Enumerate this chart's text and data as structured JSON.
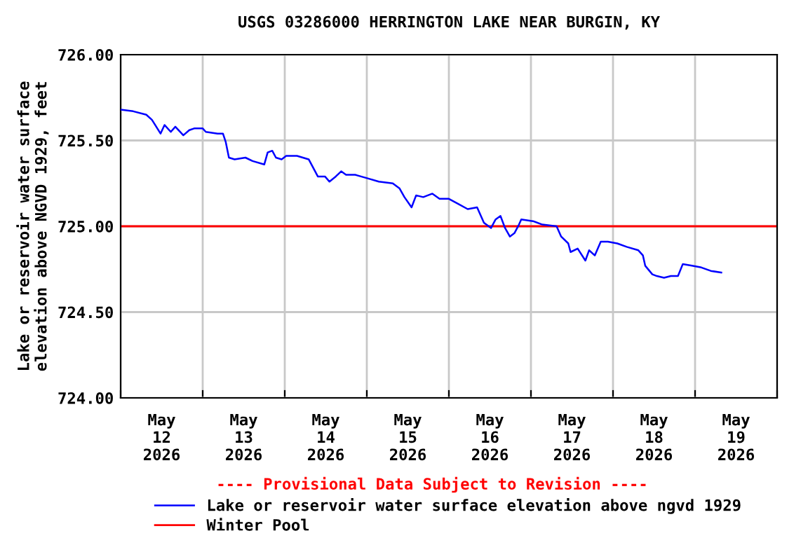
{
  "chart_data": {
    "type": "line",
    "title": "USGS 03286000 HERRINGTON LAKE NEAR BURGIN, KY",
    "ylabel": "Lake or reservoir water surface\nelevation above NGVD 1929, feet",
    "annotations": [
      "---- Provisional Data Subject to Revision ----"
    ],
    "xlim": [
      "2026-05-12T00:00",
      "2026-05-20T00:00"
    ],
    "xticks": [
      {
        "value": "2026-05-12T00:00",
        "label": null
      },
      {
        "value": "2026-05-13T00:00",
        "label": null
      },
      {
        "value": "2026-05-14T00:00",
        "label": null
      },
      {
        "value": "2026-05-15T00:00",
        "label": null
      },
      {
        "value": "2026-05-16T00:00",
        "label": null
      },
      {
        "value": "2026-05-17T00:00",
        "label": null
      },
      {
        "value": "2026-05-18T00:00",
        "label": null
      },
      {
        "value": "2026-05-19T00:00",
        "label": null
      },
      {
        "value": "2026-05-20T00:00",
        "label": null
      },
      {
        "value": "2026-05-12T12:00",
        "label": "May\n12\n2026"
      },
      {
        "value": "2026-05-13T12:00",
        "label": "May\n13\n2026"
      },
      {
        "value": "2026-05-14T12:00",
        "label": "May\n14\n2026"
      },
      {
        "value": "2026-05-15T12:00",
        "label": "May\n15\n2026"
      },
      {
        "value": "2026-05-16T12:00",
        "label": "May\n16\n2026"
      },
      {
        "value": "2026-05-17T12:00",
        "label": "May\n17\n2026"
      },
      {
        "value": "2026-05-18T12:00",
        "label": "May\n18\n2026"
      },
      {
        "value": "2026-05-19T12:00",
        "label": "May\n19\n2026"
      }
    ],
    "ylim": [
      724.0,
      726.0
    ],
    "yticks": [
      {
        "value": 724.0,
        "label": "724.00"
      },
      {
        "value": 724.5,
        "label": "724.50"
      },
      {
        "value": 725.0,
        "label": "725.00"
      },
      {
        "value": 725.5,
        "label": "725.50"
      },
      {
        "value": 726.0,
        "label": "726.00"
      }
    ],
    "grid": true,
    "legend": "bottom",
    "line_style": "solid",
    "marker": "none",
    "ref_lines": [
      {
        "axis": "y",
        "value": 725.0,
        "label": "Winter Pool",
        "color": "#ff0000"
      }
    ],
    "series": [
      {
        "name": "Lake or reservoir water surface elevation above ngvd 1929",
        "color": "#0000ff",
        "x": [
          "2026-05-12T00:00",
          "2026-05-12T03:40",
          "2026-05-12T07:30",
          "2026-05-12T09:10",
          "2026-05-12T11:40",
          "2026-05-12T12:50",
          "2026-05-12T14:40",
          "2026-05-12T16:00",
          "2026-05-12T18:20",
          "2026-05-12T20:05",
          "2026-05-12T21:30",
          "2026-05-13T00:00",
          "2026-05-13T00:55",
          "2026-05-13T04:20",
          "2026-05-13T05:55",
          "2026-05-13T06:45",
          "2026-05-13T07:40",
          "2026-05-13T09:20",
          "2026-05-13T12:30",
          "2026-05-13T14:35",
          "2026-05-13T18:00",
          "2026-05-13T19:00",
          "2026-05-13T20:20",
          "2026-05-13T21:25",
          "2026-05-13T23:05",
          "2026-05-14T00:25",
          "2026-05-14T03:35",
          "2026-05-14T07:00",
          "2026-05-14T08:20",
          "2026-05-14T09:40",
          "2026-05-14T11:45",
          "2026-05-14T13:05",
          "2026-05-14T14:55",
          "2026-05-14T16:30",
          "2026-05-14T17:55",
          "2026-05-14T20:35",
          "2026-05-15T00:05",
          "2026-05-15T03:30",
          "2026-05-15T07:35",
          "2026-05-15T09:35",
          "2026-05-15T11:00",
          "2026-05-15T13:05",
          "2026-05-15T14:25",
          "2026-05-15T16:30",
          "2026-05-15T19:10",
          "2026-05-15T21:15",
          "2026-05-16T00:00",
          "2026-05-16T02:45",
          "2026-05-16T05:30",
          "2026-05-16T08:15",
          "2026-05-16T10:15",
          "2026-05-16T12:20",
          "2026-05-16T13:40",
          "2026-05-16T15:05",
          "2026-05-16T16:25",
          "2026-05-16T17:50",
          "2026-05-16T19:10",
          "2026-05-16T20:30",
          "2026-05-16T21:10",
          "2026-05-17T00:35",
          "2026-05-17T03:20",
          "2026-05-17T07:30",
          "2026-05-17T08:50",
          "2026-05-17T10:55",
          "2026-05-17T11:35",
          "2026-05-17T13:40",
          "2026-05-17T15:55",
          "2026-05-17T17:00",
          "2026-05-17T18:40",
          "2026-05-17T20:25",
          "2026-05-17T22:30",
          "2026-05-18T01:15",
          "2026-05-18T04:00",
          "2026-05-18T07:25",
          "2026-05-18T08:45",
          "2026-05-18T09:25",
          "2026-05-18T11:30",
          "2026-05-18T12:50",
          "2026-05-18T14:55",
          "2026-05-18T16:55",
          "2026-05-18T19:00",
          "2026-05-18T20:25",
          "2026-05-18T23:05",
          "2026-05-19T01:50",
          "2026-05-19T04:35",
          "2026-05-19T07:40"
        ],
        "values": [
          725.68,
          725.67,
          725.65,
          725.62,
          725.54,
          725.59,
          725.55,
          725.58,
          725.53,
          725.56,
          725.57,
          725.57,
          725.55,
          725.54,
          725.54,
          725.49,
          725.4,
          725.39,
          725.4,
          725.38,
          725.36,
          725.43,
          725.44,
          725.4,
          725.39,
          725.41,
          725.41,
          725.39,
          725.34,
          725.29,
          725.29,
          725.26,
          725.29,
          725.32,
          725.3,
          725.3,
          725.28,
          725.26,
          725.25,
          725.22,
          725.17,
          725.11,
          725.18,
          725.17,
          725.19,
          725.16,
          725.16,
          725.13,
          725.1,
          725.11,
          725.02,
          724.99,
          725.04,
          725.06,
          724.99,
          724.94,
          724.96,
          725.01,
          725.04,
          725.03,
          725.01,
          725.0,
          724.94,
          724.9,
          724.85,
          724.87,
          724.8,
          724.86,
          724.83,
          724.91,
          724.91,
          724.9,
          724.88,
          724.86,
          724.83,
          724.77,
          724.72,
          724.71,
          724.7,
          724.71,
          724.71,
          724.78,
          724.77,
          724.76,
          724.74,
          724.73
        ]
      }
    ]
  }
}
